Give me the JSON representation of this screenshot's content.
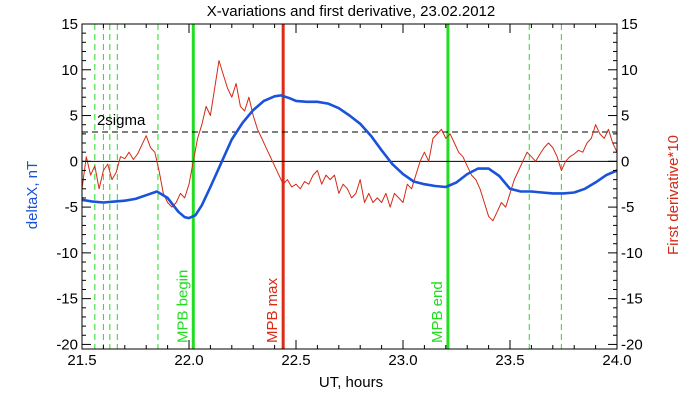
{
  "chart_data": {
    "type": "line",
    "title": "X-variations and first derivative, 23.02.2012",
    "xlabel": "UT, hours",
    "ylabel": "deltaX, nT",
    "ylabel_right": "First derivative*10",
    "xlim": [
      21.5,
      24.0
    ],
    "ylim": [
      -20.5,
      15
    ],
    "ylim_right": [
      -20.5,
      15
    ],
    "x_ticks": [
      21.5,
      22.0,
      22.5,
      23.0,
      23.5,
      24.0
    ],
    "x_tick_labels": [
      "21.5",
      "22.0",
      "22.5",
      "23.0",
      "23.5",
      "24.0"
    ],
    "y_ticks": [
      15,
      10,
      5,
      0,
      -5,
      -10,
      -15,
      -20
    ],
    "y_tick_labels": [
      "15",
      "10",
      "5",
      "0",
      "-5",
      "-10",
      "-15",
      "-20"
    ],
    "y_ticks_right": [
      15,
      10,
      5,
      0,
      -5,
      -10,
      -15,
      -20
    ],
    "y_tick_labels_right": [
      "15",
      "10",
      "5",
      "0",
      "-5",
      "-10",
      "-15",
      "-20"
    ],
    "grid": false,
    "colors": {
      "deltaX": "#1a52d9",
      "derivative": "#d42a14",
      "markers_green": "#22dd22",
      "marker_red": "#dd2a14",
      "reference": "#000000"
    },
    "series": [
      {
        "color": "#1a52d9",
        "axis": "left",
        "x": [
          21.5,
          21.55,
          21.6,
          21.65,
          21.7,
          21.75,
          21.8,
          21.85,
          21.9,
          21.95,
          21.98,
          22.0,
          22.03,
          22.06,
          22.1,
          22.15,
          22.2,
          22.25,
          22.3,
          22.35,
          22.4,
          22.43,
          22.47,
          22.5,
          22.55,
          22.6,
          22.65,
          22.7,
          22.75,
          22.8,
          22.85,
          22.9,
          22.95,
          23.0,
          23.05,
          23.1,
          23.15,
          23.2,
          23.25,
          23.3,
          23.35,
          23.4,
          23.45,
          23.5,
          23.55,
          23.6,
          23.65,
          23.7,
          23.75,
          23.8,
          23.85,
          23.9,
          23.95,
          24.0
        ],
        "y": [
          -4.2,
          -4.4,
          -4.5,
          -4.4,
          -4.3,
          -4.1,
          -3.7,
          -3.3,
          -4.0,
          -5.5,
          -6.1,
          -6.2,
          -5.9,
          -4.8,
          -2.8,
          -0.2,
          2.4,
          4.2,
          5.6,
          6.6,
          7.1,
          7.2,
          6.9,
          6.6,
          6.5,
          6.5,
          6.3,
          5.8,
          5.0,
          4.1,
          2.8,
          1.2,
          -0.3,
          -1.4,
          -2.2,
          -2.5,
          -2.7,
          -2.8,
          -2.3,
          -1.4,
          -0.8,
          -0.8,
          -1.6,
          -3.0,
          -3.3,
          -3.3,
          -3.4,
          -3.5,
          -3.5,
          -3.4,
          -3.0,
          -2.3,
          -1.5,
          -1.0
        ]
      },
      {
        "color": "#d42a14",
        "axis": "right",
        "x": [
          21.5,
          21.52,
          21.54,
          21.56,
          21.58,
          21.6,
          21.62,
          21.64,
          21.66,
          21.68,
          21.7,
          21.72,
          21.74,
          21.76,
          21.78,
          21.8,
          21.82,
          21.84,
          21.86,
          21.88,
          21.9,
          21.92,
          21.94,
          21.96,
          21.98,
          22.0,
          22.02,
          22.04,
          22.06,
          22.08,
          22.1,
          22.12,
          22.14,
          22.16,
          22.18,
          22.2,
          22.22,
          22.24,
          22.26,
          22.28,
          22.3,
          22.32,
          22.34,
          22.36,
          22.38,
          22.4,
          22.42,
          22.44,
          22.46,
          22.48,
          22.5,
          22.52,
          22.54,
          22.56,
          22.58,
          22.6,
          22.62,
          22.64,
          22.66,
          22.68,
          22.7,
          22.72,
          22.74,
          22.76,
          22.78,
          22.8,
          22.82,
          22.84,
          22.86,
          22.88,
          22.9,
          22.92,
          22.94,
          22.96,
          22.98,
          23.0,
          23.02,
          23.04,
          23.06,
          23.08,
          23.1,
          23.12,
          23.14,
          23.16,
          23.18,
          23.2,
          23.22,
          23.24,
          23.26,
          23.28,
          23.3,
          23.32,
          23.34,
          23.36,
          23.38,
          23.4,
          23.42,
          23.44,
          23.46,
          23.48,
          23.5,
          23.52,
          23.54,
          23.56,
          23.58,
          23.6,
          23.62,
          23.64,
          23.66,
          23.68,
          23.7,
          23.72,
          23.74,
          23.76,
          23.78,
          23.8,
          23.82,
          23.84,
          23.86,
          23.88,
          23.9,
          23.92,
          23.94,
          23.96,
          23.98,
          24.0
        ],
        "y": [
          -3.0,
          0.5,
          -1.5,
          -0.5,
          -3.0,
          -1.0,
          -0.3,
          -2.0,
          -1.2,
          0.5,
          0.3,
          1.0,
          0.2,
          0.8,
          1.8,
          2.8,
          1.5,
          1.0,
          -1.0,
          -3.5,
          -4.5,
          -5.0,
          -4.5,
          -3.5,
          -4.0,
          -2.5,
          0.0,
          2.5,
          4.0,
          6.0,
          5.0,
          8.0,
          11.0,
          9.5,
          8.0,
          7.0,
          8.5,
          6.0,
          5.5,
          7.0,
          5.0,
          3.5,
          2.5,
          1.5,
          0.5,
          -0.5,
          -1.5,
          -2.5,
          -2.0,
          -2.8,
          -2.5,
          -3.0,
          -2.2,
          -2.5,
          -1.5,
          -1.0,
          -2.5,
          -1.5,
          -2.0,
          -1.5,
          -3.5,
          -2.5,
          -3.0,
          -4.0,
          -3.5,
          -2.0,
          -4.5,
          -3.5,
          -4.5,
          -4.0,
          -4.5,
          -3.5,
          -5.0,
          -3.5,
          -4.0,
          -4.5,
          -2.5,
          -3.0,
          -1.5,
          0.0,
          1.0,
          0.0,
          2.5,
          3.0,
          3.5,
          2.5,
          3.0,
          2.0,
          1.0,
          0.5,
          -0.5,
          -1.5,
          -2.0,
          -3.0,
          -4.5,
          -6.0,
          -6.5,
          -5.5,
          -4.5,
          -5.0,
          -3.5,
          -2.0,
          -1.0,
          0.0,
          1.0,
          0.5,
          0.0,
          0.8,
          1.5,
          2.0,
          1.5,
          0.5,
          -1.0,
          0.0,
          0.5,
          0.8,
          1.2,
          1.0,
          2.0,
          2.5,
          4.0,
          3.0,
          2.5,
          3.5,
          2.0,
          1.0
        ]
      }
    ],
    "hlines": [
      {
        "y": 0,
        "style": "solid",
        "color": "#000000"
      },
      {
        "y": 3.2,
        "style": "dashed",
        "color": "#000000",
        "label": "2sigma",
        "label_x": 21.57
      }
    ],
    "vlines": [
      {
        "x": 21.56,
        "style": "dashed",
        "color": "#22dd22"
      },
      {
        "x": 21.6,
        "style": "dashed",
        "color": "#22dd22"
      },
      {
        "x": 21.63,
        "style": "dashed",
        "color": "#22dd22"
      },
      {
        "x": 21.665,
        "style": "dashed",
        "color": "#22dd22"
      },
      {
        "x": 21.855,
        "style": "dashed",
        "color": "#22dd22"
      },
      {
        "x": 22.02,
        "style": "solid",
        "color": "#22dd22",
        "label": "MPB begin"
      },
      {
        "x": 22.44,
        "style": "solid",
        "color": "#dd2a14",
        "label": "MPB max"
      },
      {
        "x": 23.21,
        "style": "solid",
        "color": "#22dd22",
        "label": "MPB end"
      },
      {
        "x": 23.59,
        "style": "dashed",
        "color": "#22dd22"
      },
      {
        "x": 23.74,
        "style": "dashed",
        "color": "#22dd22"
      }
    ]
  }
}
